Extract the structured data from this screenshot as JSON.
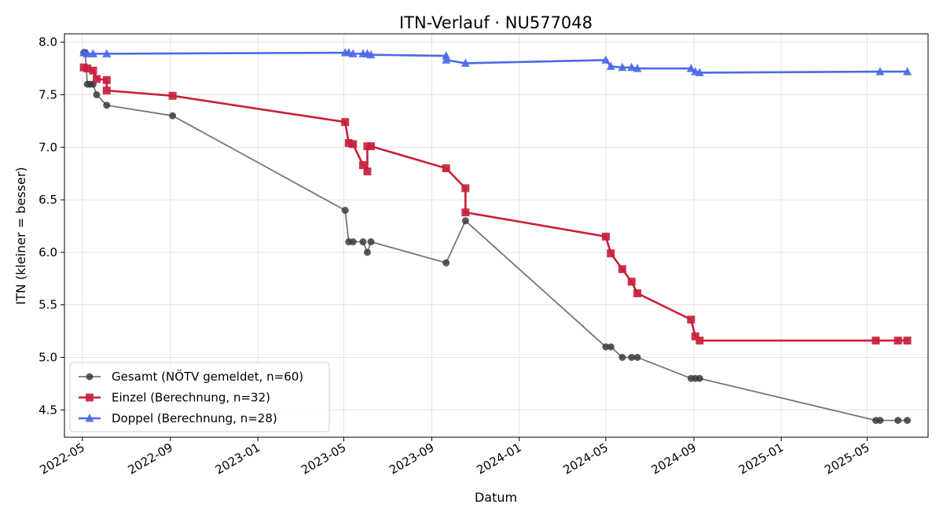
{
  "chart_data": {
    "type": "line",
    "title": "ITN-Verlauf · NU577048",
    "xlabel": "Datum",
    "ylabel": "ITN  (kleiner = besser)",
    "xlim": [
      "2022-04-06",
      "2025-07-25"
    ],
    "ylim": [
      4.24,
      8.08
    ],
    "x_ticks": [
      "2022-05-01",
      "2022-09-01",
      "2023-01-01",
      "2023-05-01",
      "2023-09-01",
      "2024-01-01",
      "2024-05-01",
      "2024-09-01",
      "2025-01-01",
      "2025-05-01"
    ],
    "x_tick_labels": [
      "2022-05",
      "2022-09",
      "2023-01",
      "2023-05",
      "2023-09",
      "2024-01",
      "2024-05",
      "2024-09",
      "2025-01",
      "2025-05"
    ],
    "y_ticks": [
      4.5,
      5.0,
      5.5,
      6.0,
      6.5,
      7.0,
      7.5,
      8.0
    ],
    "y_tick_labels": [
      "4.5",
      "5.0",
      "5.5",
      "6.0",
      "6.5",
      "7.0",
      "7.5",
      "8.0"
    ],
    "grid": true,
    "legend_position": "lower-left",
    "series": [
      {
        "name": "Gesamt (NÖTV gemeldet, n=60)",
        "color": "#3c3c3c",
        "marker": "circle",
        "points": [
          [
            "2022-05-03",
            7.9
          ],
          [
            "2022-05-05",
            7.9
          ],
          [
            "2022-05-08",
            7.6
          ],
          [
            "2022-05-12",
            7.6
          ],
          [
            "2022-05-16",
            7.6
          ],
          [
            "2022-05-21",
            7.5
          ],
          [
            "2022-06-04",
            7.4
          ],
          [
            "2022-09-04",
            7.3
          ],
          [
            "2023-05-03",
            6.4
          ],
          [
            "2023-05-08",
            6.1
          ],
          [
            "2023-05-14",
            6.1
          ],
          [
            "2023-05-28",
            6.1
          ],
          [
            "2023-06-03",
            6.0
          ],
          [
            "2023-06-08",
            6.1
          ],
          [
            "2023-09-21",
            5.9
          ],
          [
            "2023-10-18",
            6.3
          ],
          [
            "2024-05-01",
            5.1
          ],
          [
            "2024-05-08",
            5.1
          ],
          [
            "2024-05-24",
            5.0
          ],
          [
            "2024-06-06",
            5.0
          ],
          [
            "2024-06-14",
            5.0
          ],
          [
            "2024-08-28",
            4.8
          ],
          [
            "2024-09-03",
            4.8
          ],
          [
            "2024-09-09",
            4.8
          ],
          [
            "2025-05-13",
            4.4
          ],
          [
            "2025-05-19",
            4.4
          ],
          [
            "2025-06-13",
            4.4
          ],
          [
            "2025-06-26",
            4.4
          ]
        ]
      },
      {
        "name": "Einzel (Berechnung, n=32)",
        "color": "#c8203c",
        "marker": "square",
        "points": [
          [
            "2022-05-03",
            7.76
          ],
          [
            "2022-05-08",
            7.75
          ],
          [
            "2022-05-16",
            7.73
          ],
          [
            "2022-05-21",
            7.65
          ],
          [
            "2022-06-04",
            7.64
          ],
          [
            "2022-06-04",
            7.54
          ],
          [
            "2022-09-04",
            7.49
          ],
          [
            "2023-05-03",
            7.24
          ],
          [
            "2023-05-08",
            7.04
          ],
          [
            "2023-05-14",
            7.03
          ],
          [
            "2023-05-28",
            6.83
          ],
          [
            "2023-06-03",
            6.77
          ],
          [
            "2023-06-03",
            7.01
          ],
          [
            "2023-06-08",
            7.01
          ],
          [
            "2023-09-21",
            6.8
          ],
          [
            "2023-10-18",
            6.61
          ],
          [
            "2023-10-18",
            6.38
          ],
          [
            "2024-05-01",
            6.15
          ],
          [
            "2024-05-08",
            5.99
          ],
          [
            "2024-05-24",
            5.84
          ],
          [
            "2024-06-06",
            5.72
          ],
          [
            "2024-06-14",
            5.61
          ],
          [
            "2024-08-28",
            5.36
          ],
          [
            "2024-09-03",
            5.2
          ],
          [
            "2024-09-09",
            5.16
          ],
          [
            "2025-05-13",
            5.16
          ],
          [
            "2025-06-13",
            5.16
          ],
          [
            "2025-06-26",
            5.16
          ]
        ]
      },
      {
        "name": "Doppel (Berechnung, n=28)",
        "color": "#4a6ae8",
        "marker": "triangle",
        "points": [
          [
            "2022-05-03",
            7.9
          ],
          [
            "2022-05-08",
            7.89
          ],
          [
            "2022-05-16",
            7.89
          ],
          [
            "2022-06-04",
            7.89
          ],
          [
            "2023-05-03",
            7.9
          ],
          [
            "2023-05-08",
            7.9
          ],
          [
            "2023-05-14",
            7.89
          ],
          [
            "2023-05-28",
            7.89
          ],
          [
            "2023-06-03",
            7.89
          ],
          [
            "2023-06-08",
            7.88
          ],
          [
            "2023-09-21",
            7.87
          ],
          [
            "2023-09-21",
            7.83
          ],
          [
            "2023-10-18",
            7.8
          ],
          [
            "2024-05-01",
            7.83
          ],
          [
            "2024-05-08",
            7.77
          ],
          [
            "2024-05-24",
            7.76
          ],
          [
            "2024-06-06",
            7.76
          ],
          [
            "2024-06-14",
            7.75
          ],
          [
            "2024-08-28",
            7.75
          ],
          [
            "2024-09-03",
            7.72
          ],
          [
            "2024-09-09",
            7.71
          ],
          [
            "2025-05-19",
            7.72
          ],
          [
            "2025-06-26",
            7.72
          ]
        ]
      }
    ]
  }
}
